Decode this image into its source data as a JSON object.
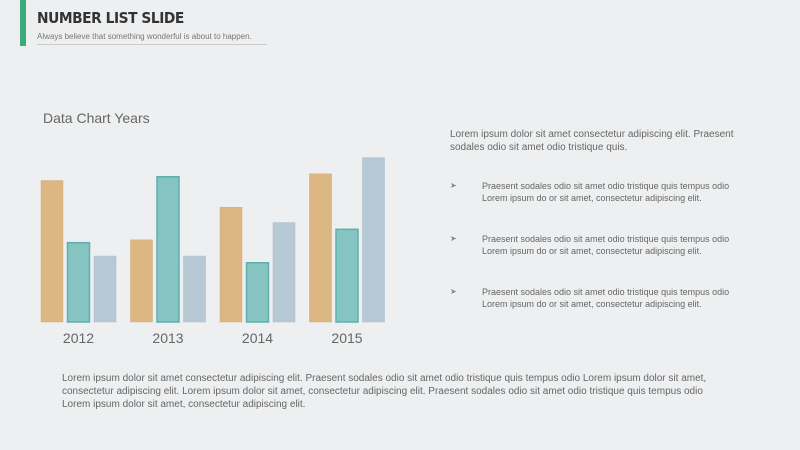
{
  "slide": {
    "title": "NUMBER LIST SLIDE",
    "subtitle": "Always believe that something wonderful is about to happen."
  },
  "intro_text": "Lorem ipsum dolor sit amet consectetur adipiscing elit. Praesent sodales odio sit amet odio tristique quis.",
  "bullets": [
    {
      "icon": "arrow-icon",
      "text": "Praesent sodales odio sit amet odio tristique quis tempus odio Lorem ipsum do or sit amet, consectetur adipiscing elit."
    },
    {
      "icon": "arrow-icon",
      "text": "Praesent sodales odio sit amet odio tristique quis tempus odio Lorem ipsum do or sit amet, consectetur adipiscing elit."
    },
    {
      "icon": "arrow-icon",
      "text": "Praesent sodales odio sit amet odio tristique quis tempus odio Lorem ipsum do or sit amet, consectetur adipiscing elit."
    }
  ],
  "footer_text": "Lorem ipsum dolor sit amet consectetur adipiscing elit. Praesent sodales odio sit amet odio tristique quis tempus odio Lorem ipsum dolor sit amet, consectetur adipiscing elit. Lorem ipsum dolor sit amet, consectetur adipiscing elit. Praesent sodales odio sit amet odio tristique quis tempus odio Lorem ipsum dolor sit amet, consectetur adipiscing elit.",
  "colors": {
    "accent": "#3daa7a",
    "series1": "#dcb784",
    "series2": "#85c4c1",
    "series3": "#b8c9d6"
  },
  "chart_data": {
    "type": "bar",
    "title": "Data Chart Years",
    "categories": [
      "2012",
      "2013",
      "2014",
      "2015"
    ],
    "series": [
      {
        "values": [
          148,
          86,
          120,
          155
        ]
      },
      {
        "values": [
          83,
          152,
          62,
          97
        ]
      },
      {
        "values": [
          69,
          69,
          104,
          172
        ]
      }
    ],
    "ylim": [
      0,
      180
    ],
    "grid": false,
    "legend": "none"
  }
}
